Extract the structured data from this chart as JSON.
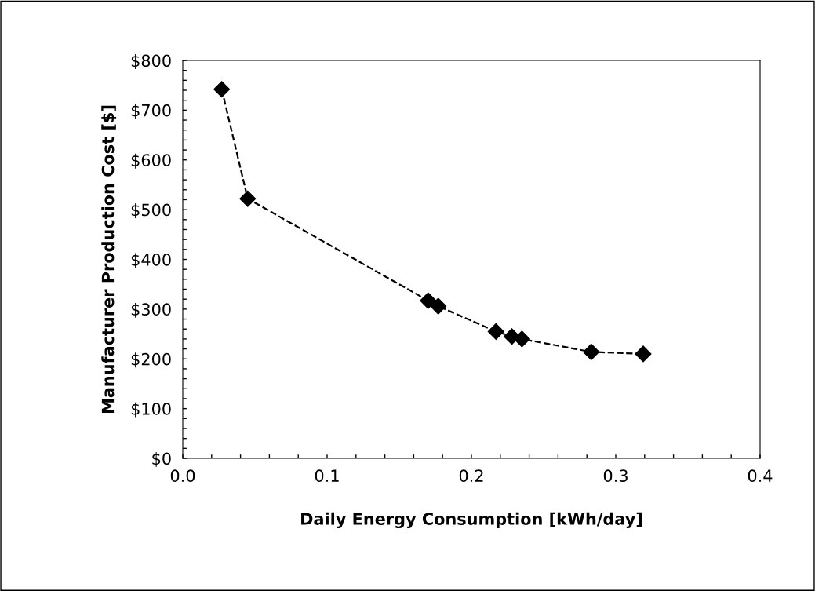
{
  "chart_data": {
    "type": "line",
    "xlabel": "Daily Energy Consumption [kWh/day]",
    "ylabel": "Manufacturer Production Cost [$]",
    "series": [
      {
        "color": "#000000",
        "x": [
          0.027,
          0.045,
          0.17,
          0.177,
          0.217,
          0.228,
          0.235,
          0.283,
          0.319
        ],
        "values": [
          742,
          522,
          317,
          306,
          255,
          245,
          240,
          214,
          210
        ]
      }
    ],
    "marker": "diamond",
    "line_style": "dashed",
    "grid": false,
    "legend": false,
    "xlim": [
      0,
      0.4
    ],
    "ylim": [
      0,
      800
    ],
    "xticks": [
      {
        "value": 0,
        "label": "0.0"
      },
      {
        "value": 0.02,
        "label": null
      },
      {
        "value": 0.04,
        "label": null
      },
      {
        "value": 0.06,
        "label": null
      },
      {
        "value": 0.08,
        "label": null
      },
      0.1,
      {
        "value": 0.12,
        "label": null
      },
      {
        "value": 0.14,
        "label": null
      },
      {
        "value": 0.16,
        "label": null
      },
      {
        "value": 0.18,
        "label": null
      },
      0.2,
      {
        "value": 0.22,
        "label": null
      },
      {
        "value": 0.24,
        "label": null
      },
      {
        "value": 0.26,
        "label": null
      },
      {
        "value": 0.28,
        "label": null
      },
      0.3,
      {
        "value": 0.32,
        "label": null
      },
      {
        "value": 0.34,
        "label": null
      },
      {
        "value": 0.36,
        "label": null
      },
      {
        "value": 0.38,
        "label": null
      },
      0.4
    ],
    "yticks": [
      {
        "value": 0,
        "label": "$0"
      },
      {
        "value": 20,
        "label": null
      },
      {
        "value": 40,
        "label": null
      },
      {
        "value": 60,
        "label": null
      },
      {
        "value": 80,
        "label": null
      },
      {
        "value": 100,
        "label": "$100"
      },
      {
        "value": 120,
        "label": null
      },
      {
        "value": 140,
        "label": null
      },
      {
        "value": 160,
        "label": null
      },
      {
        "value": 180,
        "label": null
      },
      {
        "value": 200,
        "label": "$200"
      },
      {
        "value": 220,
        "label": null
      },
      {
        "value": 240,
        "label": null
      },
      {
        "value": 260,
        "label": null
      },
      {
        "value": 280,
        "label": null
      },
      {
        "value": 300,
        "label": "$300"
      },
      {
        "value": 320,
        "label": null
      },
      {
        "value": 340,
        "label": null
      },
      {
        "value": 360,
        "label": null
      },
      {
        "value": 380,
        "label": null
      },
      {
        "value": 400,
        "label": "$400"
      },
      {
        "value": 420,
        "label": null
      },
      {
        "value": 440,
        "label": null
      },
      {
        "value": 460,
        "label": null
      },
      {
        "value": 480,
        "label": null
      },
      {
        "value": 500,
        "label": "$500"
      },
      {
        "value": 520,
        "label": null
      },
      {
        "value": 540,
        "label": null
      },
      {
        "value": 560,
        "label": null
      },
      {
        "value": 580,
        "label": null
      },
      {
        "value": 600,
        "label": "$600"
      },
      {
        "value": 620,
        "label": null
      },
      {
        "value": 640,
        "label": null
      },
      {
        "value": 660,
        "label": null
      },
      {
        "value": 680,
        "label": null
      },
      {
        "value": 700,
        "label": "$700"
      },
      {
        "value": 720,
        "label": null
      },
      {
        "value": 740,
        "label": null
      },
      {
        "value": 760,
        "label": null
      },
      {
        "value": 780,
        "label": null
      },
      {
        "value": 800,
        "label": "$800"
      }
    ]
  }
}
